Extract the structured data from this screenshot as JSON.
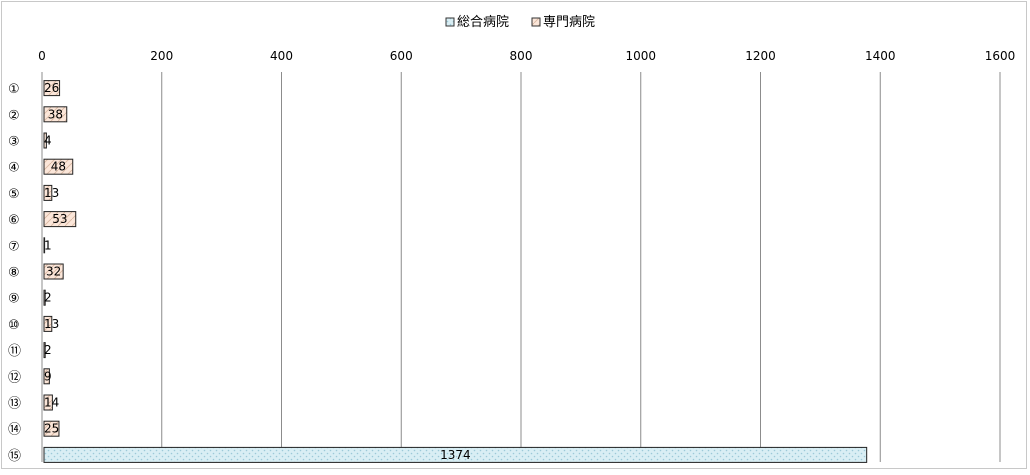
{
  "chart_data": {
    "type": "bar",
    "orientation": "horizontal",
    "stacked": true,
    "categories": [
      "①",
      "②",
      "③",
      "④",
      "⑤",
      "⑥",
      "⑦",
      "⑧",
      "⑨",
      "⑩",
      "⑪",
      "⑫",
      "⑬",
      "⑭",
      "⑮"
    ],
    "series": [
      {
        "name": "総合病院",
        "values": [
          null,
          null,
          null,
          null,
          null,
          null,
          null,
          null,
          null,
          null,
          null,
          null,
          null,
          null,
          1374
        ],
        "color": "#d9eef4",
        "pattern": "dotted"
      },
      {
        "name": "専門病院",
        "values": [
          26,
          38,
          4,
          48,
          13,
          53,
          1,
          32,
          2,
          13,
          2,
          9,
          14,
          25,
          null
        ],
        "color": "#fbe6d9",
        "pattern": "diagonal"
      }
    ],
    "xlim": [
      0,
      1600
    ],
    "xticks": [
      0,
      200,
      400,
      600,
      800,
      1000,
      1200,
      1400,
      1600
    ],
    "xtick_labels": [
      "0",
      "200",
      "400",
      "600",
      "800",
      "1000",
      "1200",
      "1400",
      "1600"
    ],
    "data_labels": [
      "26",
      "38",
      "4",
      "48",
      "13",
      "53",
      "1",
      "32",
      "2",
      "13",
      "2",
      "9",
      "14",
      "25",
      "1374"
    ],
    "axis_position": "top",
    "grid": true,
    "legend_position": "top-center",
    "title": "",
    "xlabel": "",
    "ylabel": ""
  }
}
